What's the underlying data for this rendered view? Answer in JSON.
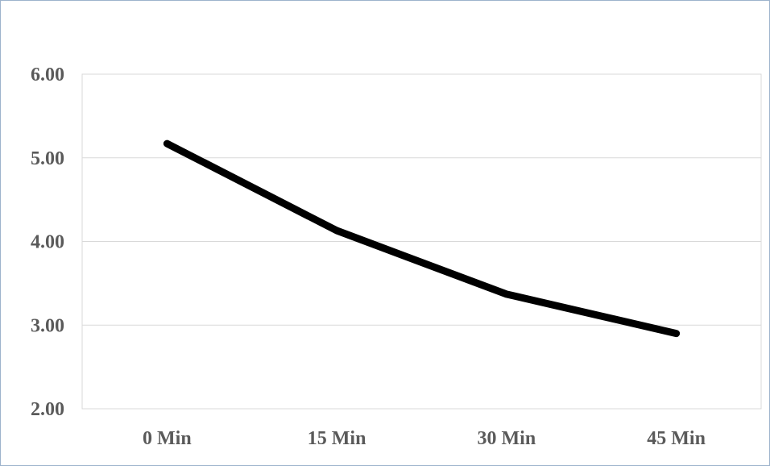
{
  "chart_data": {
    "type": "line",
    "categories": [
      "0 Min",
      "15 Min",
      "30 Min",
      "45 Min"
    ],
    "series": [
      {
        "values": [
          5.17,
          4.13,
          3.37,
          2.9
        ],
        "color": "#000000"
      }
    ],
    "yticks": [
      "2.00",
      "3.00",
      "4.00",
      "5.00",
      "6.00"
    ],
    "ylim": [
      2,
      6
    ],
    "grid": true,
    "legend": "none",
    "title": "",
    "xlabel": "",
    "ylabel": ""
  },
  "colors": {
    "gridline": "#d9d9d9",
    "axis_text": "#5a5a5a",
    "frame_border": "#9db3cc"
  }
}
